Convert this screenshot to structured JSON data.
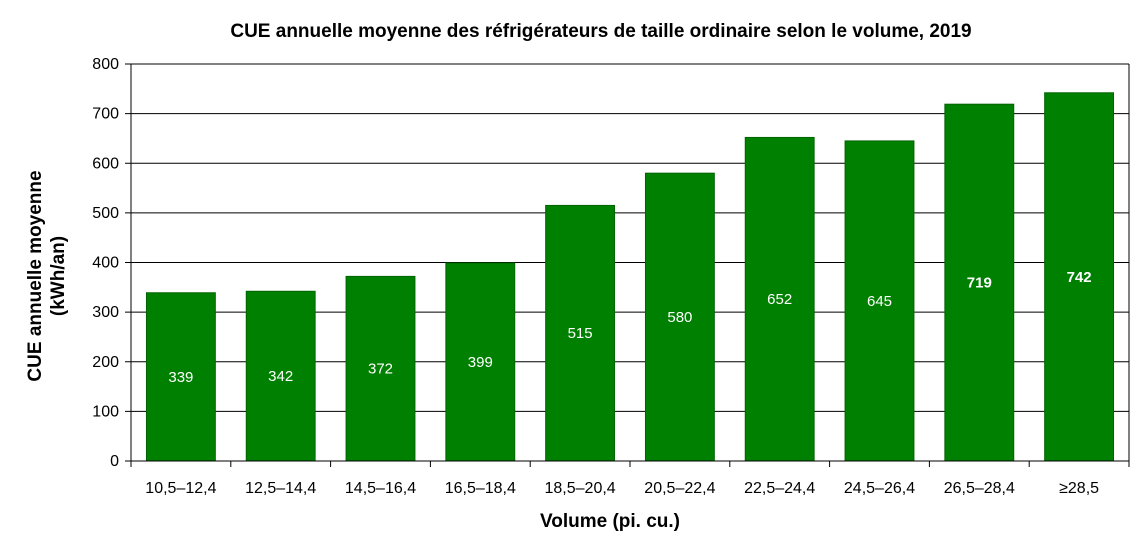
{
  "chart_data": {
    "type": "bar",
    "title": "CUE annuelle moyenne des réfrigérateurs de taille ordinaire selon le volume, 2019",
    "xlabel": "Volume (pi. cu.)",
    "ylabel_line1": "CUE annuelle moyenne",
    "ylabel_line2": "(kWh/an)",
    "categories": [
      "10,5–12,4",
      "12,5–14,4",
      "14,5–16,4",
      "16,5–18,4",
      "18,5–20,4",
      "20,5–22,4",
      "22,5–24,4",
      "24,5–26,4",
      "26,5–28,4",
      "≥28,5"
    ],
    "values": [
      339,
      342,
      372,
      399,
      515,
      580,
      652,
      645,
      719,
      742
    ],
    "value_labels": [
      "339",
      "342",
      "372",
      "399",
      "515",
      "580",
      "652",
      "645",
      "719",
      "742"
    ],
    "bold_labels": [
      false,
      false,
      false,
      false,
      false,
      false,
      false,
      false,
      true,
      true
    ],
    "ylim": [
      0,
      800
    ],
    "yticks": [
      0,
      100,
      200,
      300,
      400,
      500,
      600,
      700,
      800
    ],
    "ytick_labels": [
      "0",
      "100",
      "200",
      "300",
      "400",
      "500",
      "600",
      "700",
      "800"
    ],
    "grid": true,
    "legend": "none",
    "colors": {
      "bar": "#008000",
      "bar_stroke": "#006400",
      "grid": "#000000",
      "label": "#ffffff"
    }
  }
}
